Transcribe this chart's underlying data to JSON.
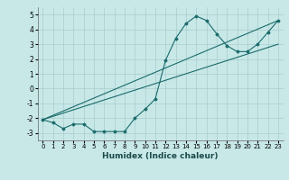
{
  "xlabel": "Humidex (Indice chaleur)",
  "ylabel": "",
  "xlim": [
    -0.5,
    23.5
  ],
  "ylim": [
    -3.5,
    5.5
  ],
  "yticks": [
    -3,
    -2,
    -1,
    0,
    1,
    2,
    3,
    4,
    5
  ],
  "xticks": [
    0,
    1,
    2,
    3,
    4,
    5,
    6,
    7,
    8,
    9,
    10,
    11,
    12,
    13,
    14,
    15,
    16,
    17,
    18,
    19,
    20,
    21,
    22,
    23
  ],
  "bg_color": "#c8e8e8",
  "grid_color": "#aacccc",
  "line_color": "#1a6b6b",
  "data_line": {
    "x": [
      0,
      1,
      2,
      3,
      4,
      5,
      6,
      7,
      8,
      9,
      10,
      11,
      12,
      13,
      14,
      15,
      16,
      17,
      18,
      19,
      20,
      21,
      22,
      23
    ],
    "y": [
      -2.1,
      -2.3,
      -2.7,
      -2.4,
      -2.4,
      -2.9,
      -2.9,
      -2.9,
      -2.9,
      -2.0,
      -1.4,
      -0.7,
      1.9,
      3.4,
      4.4,
      4.9,
      4.6,
      3.7,
      2.9,
      2.5,
      2.5,
      3.0,
      3.8,
      4.6
    ]
  },
  "line1": {
    "x": [
      0,
      23
    ],
    "y": [
      -2.1,
      4.6
    ]
  },
  "line2": {
    "x": [
      0,
      23
    ],
    "y": [
      -2.1,
      3.0
    ]
  },
  "xlabel_fontsize": 6.5,
  "tick_fontsize_x": 5.0,
  "tick_fontsize_y": 5.5
}
